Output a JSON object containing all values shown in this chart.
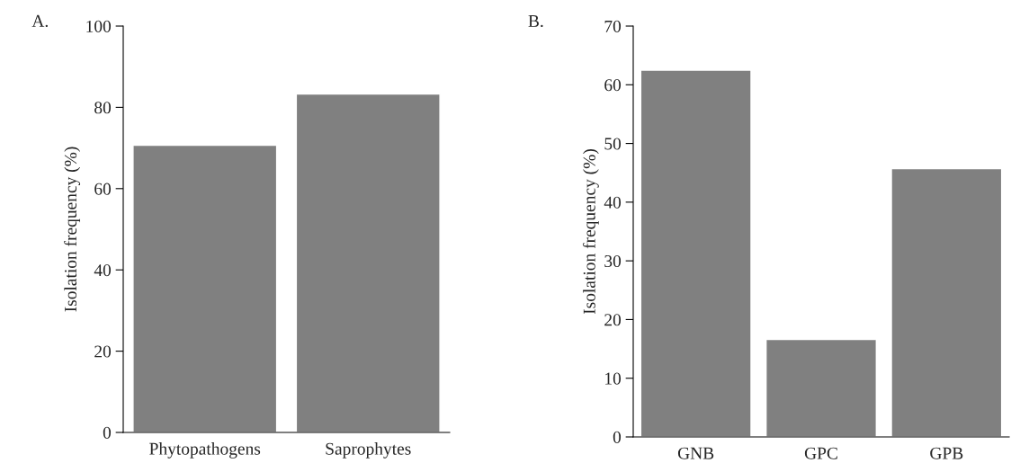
{
  "chart_data": [
    {
      "type": "bar",
      "title": "A.",
      "ylabel": "Isolation frequency (%)",
      "categories": [
        "Phytopathogens",
        "Saprophytes"
      ],
      "values": [
        70.7,
        83.3
      ],
      "color": "#808080",
      "ylim": [
        0,
        100
      ],
      "yticks": [
        0,
        20,
        40,
        60,
        80,
        100
      ],
      "grid": false
    },
    {
      "type": "bar",
      "title": "B.",
      "ylabel": "Isolation frequency (%)",
      "categories": [
        "GNB",
        "GPC",
        "GPB"
      ],
      "values": [
        62.5,
        16.6,
        45.7
      ],
      "color": "#808080",
      "ylim": [
        0,
        70
      ],
      "yticks": [
        0,
        10,
        20,
        30,
        40,
        50,
        60,
        70
      ],
      "grid": false
    }
  ]
}
